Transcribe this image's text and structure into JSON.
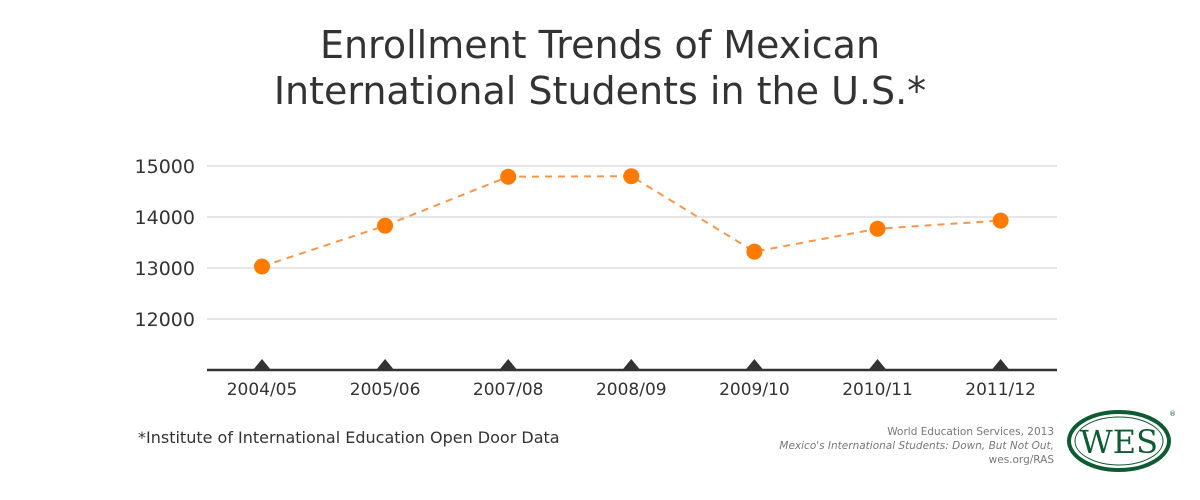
{
  "chart_data": {
    "type": "line",
    "title": "Enrollment Trends of Mexican International Students in the U.S.*",
    "title_lines": [
      "Enrollment Trends of Mexican",
      "International Students in the U.S.*"
    ],
    "xlabel": "",
    "ylabel": "",
    "categories": [
      "2004/05",
      "2005/06",
      "2007/08",
      "2008/09",
      "2009/10",
      "2010/11",
      "2011/12"
    ],
    "values": [
      13030,
      13830,
      14790,
      14800,
      13320,
      13770,
      13930
    ],
    "yticks": [
      12000,
      13000,
      14000,
      15000
    ],
    "ylim": [
      11000,
      15000
    ],
    "grid": true,
    "line_style": "dashed",
    "colors": {
      "line": "#f7964a",
      "marker": "#ff7b00",
      "axis": "#333333",
      "grid": "#e6e6e6"
    }
  },
  "footnote": "*Institute of International Education Open Door Data",
  "credit": {
    "line1": "World Education Services, 2013",
    "line2": "Mexico's International Students: Down, But Not Out,",
    "line3": "wes.org/RAS"
  },
  "logo": {
    "text": "WES",
    "color": "#0e5a32"
  }
}
